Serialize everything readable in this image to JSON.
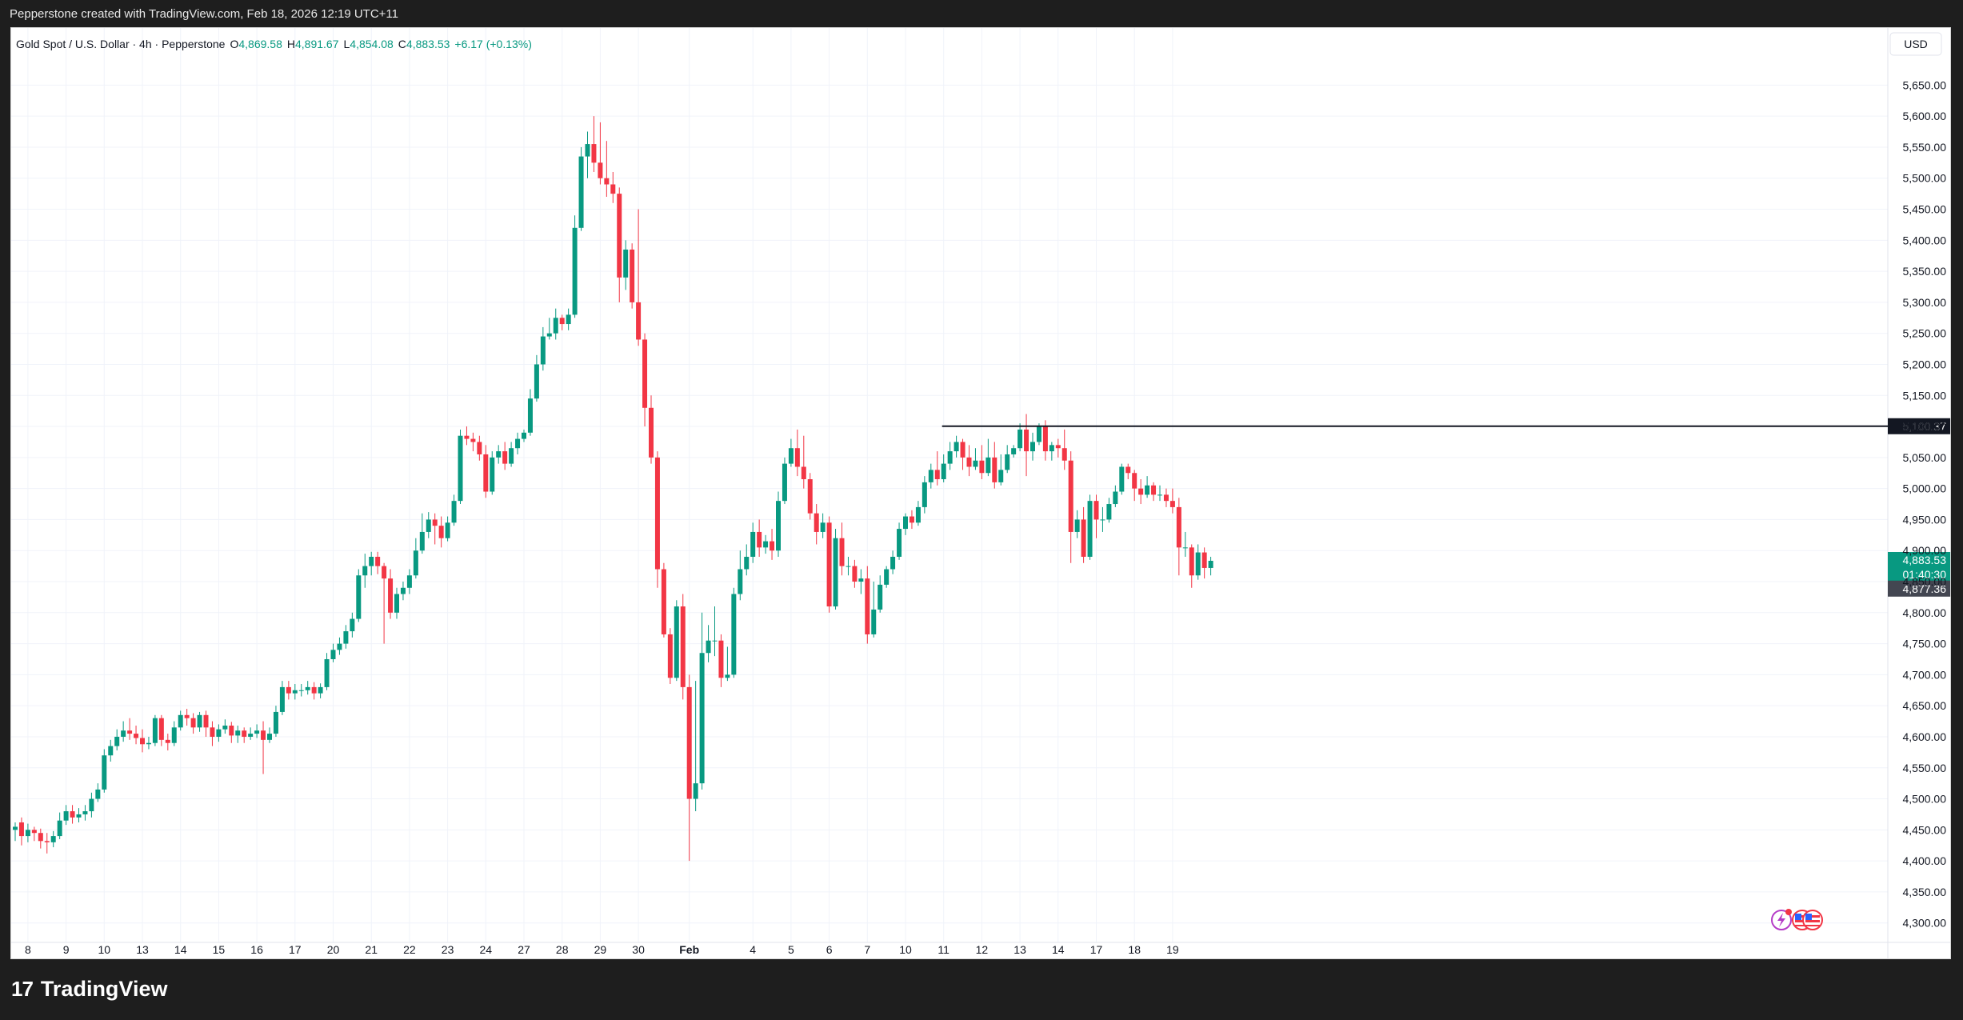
{
  "header": {
    "credit": "Pepperstone created with TradingView.com, Feb 18, 2026 12:19 UTC+11"
  },
  "legend": {
    "symbol": "Gold Spot / U.S. Dollar · 4h · Pepperstone",
    "o_label": "O",
    "o_value": "4,869.58",
    "h_label": "H",
    "h_value": "4,891.67",
    "l_label": "L",
    "l_value": "4,854.08",
    "c_label": "C",
    "c_value": "4,883.53",
    "change": "+6.17 (+0.13%)"
  },
  "currency": "USD",
  "footer": {
    "brand_mark": "17",
    "brand": "TradingView"
  },
  "colors": {
    "up": "#089981",
    "down": "#f23645",
    "line": "#131722",
    "grid": "#f0f3fa"
  },
  "chart_data": {
    "type": "candlestick",
    "title": "Gold Spot / U.S. Dollar · 4h · Pepperstone",
    "ylim": [
      4275,
      5675
    ],
    "y_ticks": [
      4300,
      4350,
      4400,
      4450,
      4500,
      4550,
      4600,
      4650,
      4700,
      4750,
      4800,
      4850,
      4900,
      4950,
      5000,
      5050,
      5100,
      5150,
      5200,
      5250,
      5300,
      5350,
      5400,
      5450,
      5500,
      5550,
      5600,
      5650
    ],
    "y_tick_labels": [
      "4,300.00",
      "4,350.00",
      "4,400.00",
      "4,450.00",
      "4,500.00",
      "4,550.00",
      "4,600.00",
      "4,650.00",
      "4,700.00",
      "4,750.00",
      "4,800.00",
      "4,850.00",
      "4,900.00",
      "4,950.00",
      "5,000.00",
      "5,050.00",
      "5,100.00",
      "5,150.00",
      "5,200.00",
      "5,250.00",
      "5,300.00",
      "5,350.00",
      "5,400.00",
      "5,450.00",
      "5,500.00",
      "5,550.00",
      "5,600.00",
      "5,650.00"
    ],
    "x_tick_labels": [
      "8",
      "9",
      "10",
      "13",
      "14",
      "15",
      "16",
      "17",
      "20",
      "21",
      "22",
      "23",
      "24",
      "27",
      "28",
      "29",
      "30",
      "Feb",
      "4",
      "5",
      "6",
      "7",
      "10",
      "11",
      "12",
      "13",
      "14",
      "17",
      "18",
      "19"
    ],
    "x_tick_bar_index": [
      2,
      8,
      14,
      20,
      26,
      32,
      38,
      44,
      50,
      56,
      62,
      68,
      74,
      80,
      86,
      92,
      98,
      106,
      116,
      122,
      128,
      134,
      140,
      146,
      152,
      158,
      164,
      170,
      176,
      182
    ],
    "candles": [
      [
        4450,
        4455,
        4432,
        4462
      ],
      [
        4462,
        4440,
        4425,
        4470
      ],
      [
        4440,
        4450,
        4430,
        4460
      ],
      [
        4450,
        4445,
        4432,
        4455
      ],
      [
        4445,
        4432,
        4420,
        4452
      ],
      [
        4432,
        4430,
        4412,
        4445
      ],
      [
        4430,
        4440,
        4422,
        4448
      ],
      [
        4440,
        4465,
        4435,
        4478
      ],
      [
        4465,
        4480,
        4458,
        4490
      ],
      [
        4480,
        4470,
        4460,
        4490
      ],
      [
        4470,
        4475,
        4462,
        4485
      ],
      [
        4475,
        4480,
        4465,
        4490
      ],
      [
        4480,
        4500,
        4470,
        4510
      ],
      [
        4500,
        4515,
        4495,
        4525
      ],
      [
        4515,
        4570,
        4510,
        4580
      ],
      [
        4570,
        4585,
        4560,
        4595
      ],
      [
        4585,
        4600,
        4578,
        4612
      ],
      [
        4600,
        4610,
        4592,
        4625
      ],
      [
        4610,
        4605,
        4595,
        4630
      ],
      [
        4605,
        4598,
        4588,
        4618
      ],
      [
        4598,
        4588,
        4575,
        4612
      ],
      [
        4588,
        4590,
        4580,
        4600
      ],
      [
        4590,
        4630,
        4585,
        4635
      ],
      [
        4630,
        4595,
        4585,
        4635
      ],
      [
        4595,
        4590,
        4578,
        4605
      ],
      [
        4590,
        4615,
        4585,
        4625
      ],
      [
        4615,
        4635,
        4610,
        4642
      ],
      [
        4635,
        4630,
        4618,
        4645
      ],
      [
        4630,
        4615,
        4605,
        4638
      ],
      [
        4615,
        4635,
        4608,
        4640
      ],
      [
        4635,
        4615,
        4600,
        4642
      ],
      [
        4615,
        4600,
        4585,
        4625
      ],
      [
        4600,
        4612,
        4592,
        4620
      ],
      [
        4612,
        4618,
        4605,
        4628
      ],
      [
        4618,
        4602,
        4590,
        4624
      ],
      [
        4602,
        4610,
        4590,
        4618
      ],
      [
        4610,
        4600,
        4590,
        4615
      ],
      [
        4600,
        4605,
        4595,
        4615
      ],
      [
        4605,
        4610,
        4598,
        4620
      ],
      [
        4610,
        4595,
        4540,
        4625
      ],
      [
        4595,
        4605,
        4590,
        4615
      ],
      [
        4605,
        4640,
        4600,
        4650
      ],
      [
        4640,
        4680,
        4635,
        4690
      ],
      [
        4680,
        4670,
        4660,
        4690
      ],
      [
        4670,
        4675,
        4660,
        4685
      ],
      [
        4675,
        4675,
        4665,
        4685
      ],
      [
        4675,
        4680,
        4668,
        4690
      ],
      [
        4680,
        4670,
        4660,
        4688
      ],
      [
        4670,
        4680,
        4662,
        4686
      ],
      [
        4680,
        4725,
        4675,
        4735
      ],
      [
        4725,
        4740,
        4720,
        4750
      ],
      [
        4740,
        4750,
        4732,
        4760
      ],
      [
        4750,
        4770,
        4742,
        4780
      ],
      [
        4770,
        4790,
        4760,
        4800
      ],
      [
        4790,
        4860,
        4785,
        4870
      ],
      [
        4860,
        4875,
        4840,
        4895
      ],
      [
        4875,
        4890,
        4860,
        4898
      ],
      [
        4890,
        4875,
        4862,
        4898
      ],
      [
        4875,
        4855,
        4750,
        4880
      ],
      [
        4855,
        4800,
        4790,
        4870
      ],
      [
        4800,
        4830,
        4790,
        4840
      ],
      [
        4830,
        4840,
        4820,
        4850
      ],
      [
        4840,
        4860,
        4830,
        4870
      ],
      [
        4860,
        4900,
        4855,
        4920
      ],
      [
        4900,
        4930,
        4895,
        4960
      ],
      [
        4930,
        4950,
        4920,
        4962
      ],
      [
        4950,
        4940,
        4910,
        4960
      ],
      [
        4940,
        4920,
        4905,
        4955
      ],
      [
        4920,
        4945,
        4915,
        4955
      ],
      [
        4945,
        4980,
        4940,
        4990
      ],
      [
        4980,
        5085,
        4975,
        5095
      ],
      [
        5085,
        5080,
        5070,
        5100
      ],
      [
        5080,
        5075,
        5060,
        5090
      ],
      [
        5075,
        5055,
        5045,
        5085
      ],
      [
        5055,
        4995,
        4985,
        5070
      ],
      [
        4995,
        5050,
        4990,
        5060
      ],
      [
        5050,
        5060,
        5040,
        5070
      ],
      [
        5060,
        5040,
        5030,
        5075
      ],
      [
        5040,
        5065,
        5035,
        5075
      ],
      [
        5065,
        5080,
        5055,
        5090
      ],
      [
        5080,
        5090,
        5075,
        5095
      ],
      [
        5090,
        5145,
        5085,
        5160
      ],
      [
        5145,
        5200,
        5140,
        5215
      ],
      [
        5200,
        5245,
        5190,
        5260
      ],
      [
        5245,
        5250,
        5240,
        5275
      ],
      [
        5250,
        5275,
        5240,
        5290
      ],
      [
        5275,
        5265,
        5255,
        5280
      ],
      [
        5265,
        5280,
        5255,
        5290
      ],
      [
        5280,
        5420,
        5275,
        5440
      ],
      [
        5420,
        5535,
        5415,
        5550
      ],
      [
        5535,
        5555,
        5500,
        5575
      ],
      [
        5555,
        5525,
        5510,
        5600
      ],
      [
        5525,
        5500,
        5490,
        5590
      ],
      [
        5500,
        5490,
        5470,
        5560
      ],
      [
        5490,
        5475,
        5460,
        5510
      ],
      [
        5475,
        5340,
        5300,
        5485
      ],
      [
        5340,
        5385,
        5320,
        5400
      ],
      [
        5385,
        5300,
        5290,
        5395
      ],
      [
        5300,
        5240,
        5230,
        5450
      ],
      [
        5240,
        5130,
        5100,
        5250
      ],
      [
        5130,
        5050,
        5040,
        5150
      ],
      [
        5050,
        4870,
        4840,
        5060
      ],
      [
        4870,
        4765,
        4760,
        4880
      ],
      [
        4765,
        4695,
        4685,
        4775
      ],
      [
        4695,
        4810,
        4690,
        4820
      ],
      [
        4810,
        4680,
        4660,
        4830
      ],
      [
        4680,
        4500,
        4400,
        4700
      ],
      [
        4500,
        4525,
        4480,
        4690
      ],
      [
        4525,
        4735,
        4515,
        4800
      ],
      [
        4735,
        4755,
        4720,
        4780
      ],
      [
        4755,
        4755,
        4730,
        4810
      ],
      [
        4755,
        4695,
        4680,
        4765
      ],
      [
        4695,
        4700,
        4690,
        4745
      ],
      [
        4700,
        4830,
        4695,
        4840
      ],
      [
        4830,
        4870,
        4820,
        4900
      ],
      [
        4870,
        4890,
        4860,
        4910
      ],
      [
        4890,
        4930,
        4880,
        4945
      ],
      [
        4930,
        4905,
        4890,
        4950
      ],
      [
        4905,
        4915,
        4895,
        4925
      ],
      [
        4915,
        4900,
        4885,
        4935
      ],
      [
        4900,
        4980,
        4890,
        4995
      ],
      [
        4980,
        5040,
        4975,
        5050
      ],
      [
        5040,
        5065,
        5035,
        5080
      ],
      [
        5065,
        5035,
        5020,
        5095
      ],
      [
        5035,
        5015,
        5000,
        5085
      ],
      [
        5015,
        4960,
        4950,
        5025
      ],
      [
        4960,
        4930,
        4910,
        4975
      ],
      [
        4930,
        4945,
        4920,
        4960
      ],
      [
        4945,
        4810,
        4800,
        4955
      ],
      [
        4810,
        4920,
        4805,
        4935
      ],
      [
        4920,
        4875,
        4860,
        4945
      ],
      [
        4875,
        4875,
        4860,
        4890
      ],
      [
        4875,
        4850,
        4840,
        4885
      ],
      [
        4850,
        4855,
        4830,
        4870
      ],
      [
        4855,
        4765,
        4750,
        4875
      ],
      [
        4765,
        4805,
        4760,
        4850
      ],
      [
        4805,
        4845,
        4800,
        4860
      ],
      [
        4845,
        4870,
        4840,
        4875
      ],
      [
        4870,
        4890,
        4862,
        4900
      ],
      [
        4890,
        4935,
        4885,
        4945
      ],
      [
        4935,
        4955,
        4925,
        4960
      ],
      [
        4955,
        4945,
        4935,
        4965
      ],
      [
        4945,
        4970,
        4940,
        4980
      ],
      [
        4970,
        5010,
        4960,
        5020
      ],
      [
        5010,
        5030,
        5000,
        5040
      ],
      [
        5030,
        5015,
        5005,
        5060
      ],
      [
        5015,
        5040,
        5010,
        5055
      ],
      [
        5040,
        5060,
        5030,
        5075
      ],
      [
        5060,
        5075,
        5050,
        5085
      ],
      [
        5075,
        5050,
        5030,
        5080
      ],
      [
        5050,
        5035,
        5020,
        5070
      ],
      [
        5035,
        5045,
        5030,
        5065
      ],
      [
        5045,
        5025,
        5015,
        5070
      ],
      [
        5025,
        5050,
        5020,
        5080
      ],
      [
        5050,
        5010,
        5000,
        5075
      ],
      [
        5010,
        5030,
        5005,
        5055
      ],
      [
        5030,
        5055,
        5025,
        5070
      ],
      [
        5055,
        5065,
        5050,
        5070
      ],
      [
        5065,
        5095,
        5060,
        5105
      ],
      [
        5095,
        5060,
        5020,
        5120
      ],
      [
        5060,
        5075,
        5045,
        5090
      ],
      [
        5075,
        5100,
        5070,
        5105
      ],
      [
        5100,
        5060,
        5045,
        5110
      ],
      [
        5060,
        5070,
        5045,
        5075
      ],
      [
        5070,
        5065,
        5050,
        5080
      ],
      [
        5065,
        5045,
        5030,
        5095
      ],
      [
        5045,
        4930,
        4880,
        5060
      ],
      [
        4930,
        4950,
        4920,
        4965
      ],
      [
        4950,
        4890,
        4880,
        4970
      ],
      [
        4890,
        4980,
        4885,
        4990
      ],
      [
        4980,
        4950,
        4920,
        4990
      ],
      [
        4950,
        4950,
        4930,
        4970
      ],
      [
        4950,
        4975,
        4945,
        4985
      ],
      [
        4975,
        4995,
        4970,
        5005
      ],
      [
        4995,
        5035,
        4990,
        5040
      ],
      [
        5035,
        5025,
        5015,
        5040
      ],
      [
        5025,
        5000,
        4980,
        5030
      ],
      [
        5000,
        4990,
        4975,
        5015
      ],
      [
        4990,
        5005,
        4985,
        5020
      ],
      [
        5005,
        4990,
        4980,
        5010
      ],
      [
        4990,
        4990,
        4980,
        5005
      ],
      [
        4990,
        4980,
        4970,
        5000
      ],
      [
        4980,
        4970,
        4960,
        5000
      ],
      [
        4970,
        4905,
        4860,
        4985
      ],
      [
        4905,
        4905,
        4890,
        4930
      ],
      [
        4905,
        4860,
        4840,
        4910
      ],
      [
        4860,
        4897,
        4853,
        4910
      ],
      [
        4897,
        4872,
        4855,
        4905
      ],
      [
        4872,
        4883.53,
        4860,
        4890
      ]
    ],
    "price_line": {
      "value": 5100.37,
      "label": "5,100.37",
      "from_bar_index": 146
    },
    "current_price": {
      "value": 4883.53,
      "label": "4,883.53",
      "countdown": "01:40:30"
    },
    "prev_close_marker": {
      "value": 4877.36,
      "label": "4,877.36"
    },
    "grid": true
  }
}
